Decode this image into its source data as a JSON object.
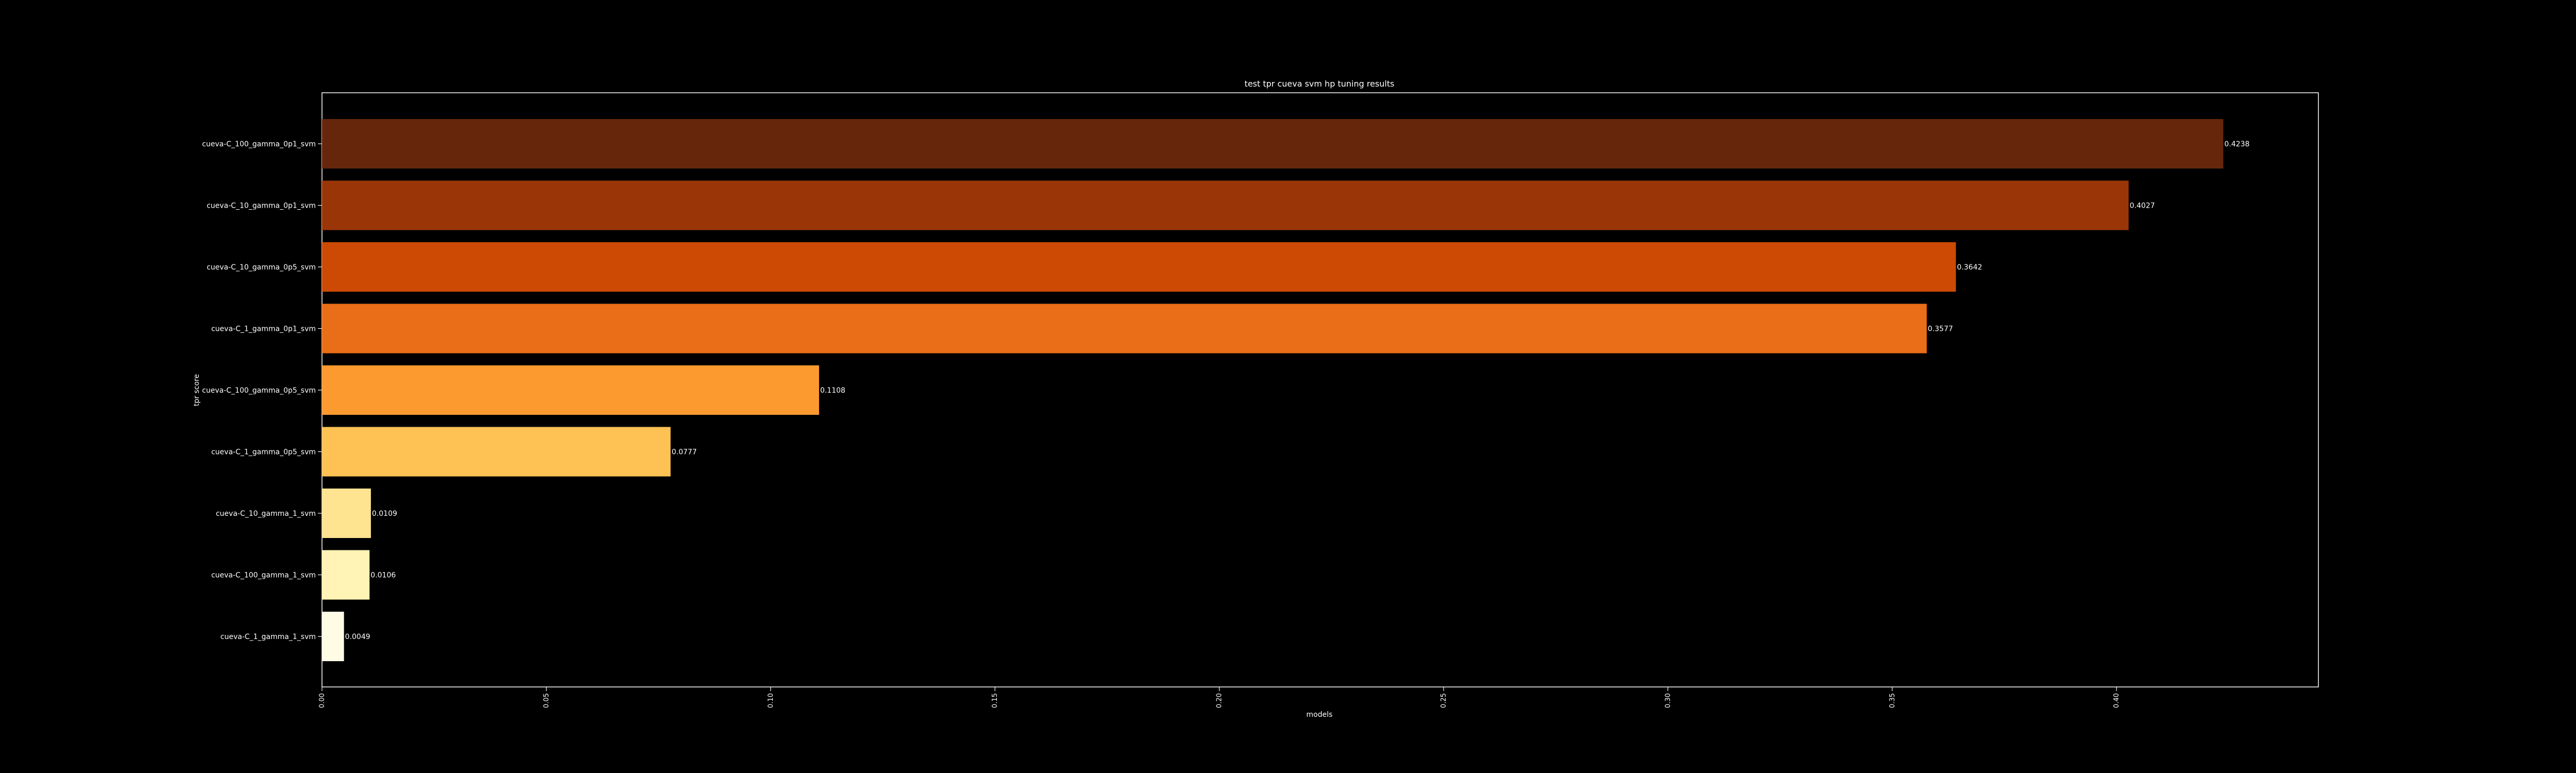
{
  "chart_data": {
    "type": "bar",
    "orientation": "horizontal",
    "title": "test tpr cueva svm hp tuning results",
    "xlabel": "models",
    "ylabel": "tpr score",
    "xlim": [
      0,
      0.445
    ],
    "x_ticks": [
      0.0,
      0.05,
      0.1,
      0.15,
      0.2,
      0.25,
      0.3,
      0.35,
      0.4
    ],
    "x_tick_labels": [
      "0.00",
      "0.05",
      "0.10",
      "0.15",
      "0.20",
      "0.25",
      "0.30",
      "0.35",
      "0.40"
    ],
    "categories": [
      "cueva-C_100_gamma_0p1_svm",
      "cueva-C_10_gamma_0p1_svm",
      "cueva-C_10_gamma_0p5_svm",
      "cueva-C_1_gamma_0p1_svm",
      "cueva-C_100_gamma_0p5_svm",
      "cueva-C_1_gamma_0p5_svm",
      "cueva-C_10_gamma_1_svm",
      "cueva-C_100_gamma_1_svm",
      "cueva-C_1_gamma_1_svm"
    ],
    "values": [
      0.4238,
      0.4027,
      0.3642,
      0.3577,
      0.1108,
      0.0777,
      0.0109,
      0.0106,
      0.0049
    ],
    "value_labels": [
      "0.4238",
      "0.4027",
      "0.3642",
      "0.3577",
      "0.1108",
      "0.0777",
      "0.0109",
      "0.0106",
      "0.0049"
    ],
    "colors": [
      "#65260c",
      "#9a3508",
      "#cc4a04",
      "#ea6e17",
      "#fd9a2f",
      "#fec254",
      "#fee391",
      "#fff3b5",
      "#fffce6"
    ],
    "grid": false,
    "legend": "none"
  }
}
